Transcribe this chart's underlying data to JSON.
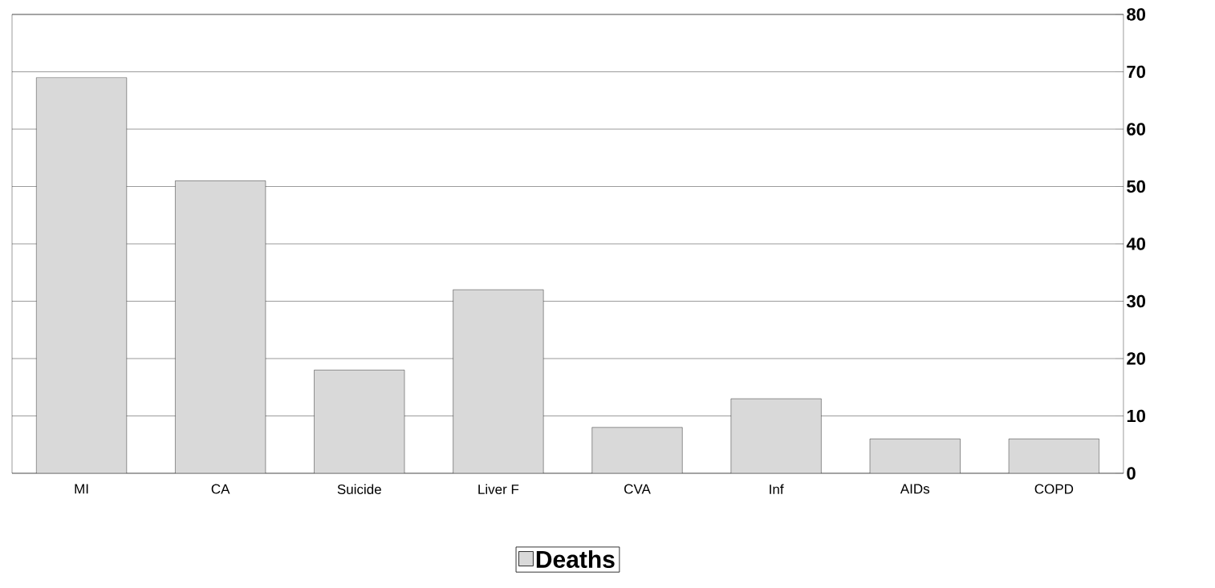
{
  "chart_data": {
    "type": "bar",
    "categories": [
      "MI",
      "CA",
      "Suicide",
      "Liver F",
      "CVA",
      "Inf",
      "AIDs",
      "COPD"
    ],
    "series": [
      {
        "name": "Deaths",
        "color": "#d9d9d9",
        "values": [
          69,
          51,
          18,
          32,
          8,
          13,
          6,
          6
        ]
      }
    ],
    "ylim": [
      0,
      80
    ],
    "yticks": [
      0,
      10,
      20,
      30,
      40,
      50,
      60,
      70,
      80
    ],
    "grid": "y",
    "legend": "bottom"
  }
}
